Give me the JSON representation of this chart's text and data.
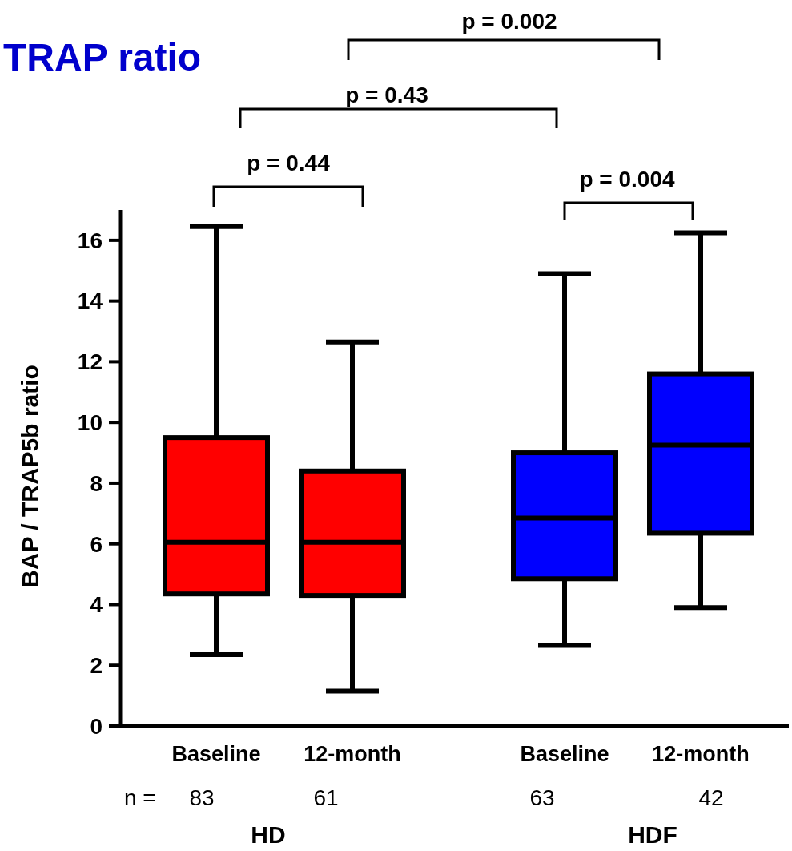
{
  "chart_data": {
    "type": "box",
    "title": "TRAP ratio",
    "ylabel": "BAP / TRAP5b ratio",
    "categories": [
      "Baseline",
      "12-month",
      "Baseline",
      "12-month"
    ],
    "colors": [
      "#ff0000",
      "#ff0000",
      "#0000ff",
      "#0000ff"
    ],
    "boxes": [
      {
        "low": 2.35,
        "q1": 4.35,
        "median": 6.05,
        "q3": 9.5,
        "high": 16.45
      },
      {
        "low": 1.15,
        "q1": 4.3,
        "median": 6.05,
        "q3": 8.4,
        "high": 12.65
      },
      {
        "low": 2.65,
        "q1": 4.85,
        "median": 6.85,
        "q3": 9.0,
        "high": 14.9
      },
      {
        "low": 3.9,
        "q1": 6.35,
        "median": 9.25,
        "q3": 11.6,
        "high": 16.25
      }
    ],
    "ylim": [
      0,
      17
    ],
    "yticks": [
      0,
      2,
      4,
      6,
      8,
      10,
      12,
      14,
      16
    ],
    "grid": false,
    "annotations": [
      "p = 0.44",
      "p = 0.43",
      "p = 0.002",
      "p = 0.004",
      "n =",
      "83",
      "61",
      "63",
      "42",
      "HD",
      "HDF"
    ]
  }
}
